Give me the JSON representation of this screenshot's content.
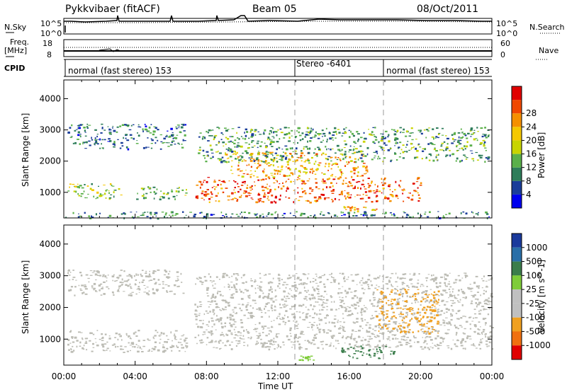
{
  "header": {
    "station": "Pykkvibaer (fitACF)",
    "beam": "Beam 05",
    "date": "08/Oct/2011"
  },
  "left_labels": {
    "nsky": "N.Sky",
    "freq_top": "Freq.",
    "freq_unit": "[MHz]",
    "cpid": "CPID"
  },
  "right_labels": {
    "nsearch": "N.Search",
    "nave": "Nave"
  },
  "noise_panel": {
    "left_top": "10^5",
    "left_bottom": "10^0",
    "right_top": "10^5",
    "right_bottom": "10^0"
  },
  "freq_panel": {
    "left_top": "18",
    "left_bottom": "8",
    "right_top": "60",
    "right_bottom": "0"
  },
  "cpid_segments": [
    {
      "label": "normal (fast stereo) 153",
      "start_hour": 0
    },
    {
      "label": "Stereo -6401",
      "start_hour": 13
    },
    {
      "label": "normal (fast stereo) 153",
      "start_hour": 18
    }
  ],
  "colors": {
    "power_scale": [
      "#0000ee",
      "#1a3d9a",
      "#2e7d5a",
      "#5ab04a",
      "#c8d400",
      "#f5c800",
      "#f59000",
      "#f04800",
      "#e00000"
    ],
    "velocity_scale": [
      "#1a3a9c",
      "#2a6fa8",
      "#3b7d4b",
      "#7fcc3a",
      "#c0c0c0",
      "#c0c0c0",
      "#f0a020",
      "#f07010",
      "#e00000"
    ],
    "ground_scatter": "#bcbcb4"
  },
  "chart_data": [
    {
      "type": "heatmap",
      "panel": "power",
      "title": "",
      "xlabel": "Time UT",
      "ylabel": "Slant Range [km]",
      "xlim_hours": [
        0,
        24
      ],
      "ylim_km": [
        180,
        4600
      ],
      "x_ticks": [
        "00:00",
        "04:00",
        "08:00",
        "12:00",
        "16:00",
        "20:00",
        "00:00"
      ],
      "y_ticks": [
        "1000",
        "2000",
        "3000",
        "4000"
      ],
      "colorbar": {
        "label": "Power [dB]",
        "ticks": [
          "4",
          "8",
          "12",
          "16",
          "20",
          "24",
          "28"
        ],
        "range": [
          0,
          30
        ]
      },
      "echo_regions": [
        {
          "hours": [
            0.2,
            6.8
          ],
          "range_km": [
            2400,
            3200
          ],
          "power_db": 8
        },
        {
          "hours": [
            0.2,
            3.2
          ],
          "range_km": [
            800,
            1300
          ],
          "power_db": 14
        },
        {
          "hours": [
            4.0,
            7.0
          ],
          "range_km": [
            800,
            1200
          ],
          "power_db": 12
        },
        {
          "hours": [
            7.3,
            20.0
          ],
          "range_km": [
            700,
            1500
          ],
          "power_db": 24
        },
        {
          "hours": [
            9.0,
            17.0
          ],
          "range_km": [
            1500,
            2300
          ],
          "power_db": 20
        },
        {
          "hours": [
            7.5,
            23.8
          ],
          "range_km": [
            2000,
            3100
          ],
          "power_db": 10
        },
        {
          "hours": [
            15.5,
            17.5
          ],
          "range_km": [
            420,
            600
          ],
          "power_db": 20
        },
        {
          "hours": [
            0.0,
            24.0
          ],
          "range_km": [
            190,
            400
          ],
          "power_db": 8
        }
      ]
    },
    {
      "type": "heatmap",
      "panel": "velocity",
      "title": "",
      "xlabel": "Time UT",
      "ylabel": "Slant Range [km]",
      "xlim_hours": [
        0,
        24
      ],
      "ylim_km": [
        180,
        4600
      ],
      "x_ticks": [
        "00:00",
        "04:00",
        "08:00",
        "12:00",
        "16:00",
        "20:00",
        "00:00"
      ],
      "y_ticks": [
        "1000",
        "2000",
        "3000",
        "4000"
      ],
      "colorbar": {
        "label": "Velocity [m s^-1]",
        "ticks": [
          "1000",
          "500",
          "100",
          "25",
          "-25",
          "-100",
          "-500",
          "-1000"
        ],
        "range": [
          -1000,
          1000
        ]
      },
      "echo_regions": [
        {
          "hours": [
            0.2,
            6.8
          ],
          "range_km": [
            2400,
            3200
          ],
          "velocity": 0,
          "ground_scatter": true
        },
        {
          "hours": [
            0.2,
            7.0
          ],
          "range_km": [
            600,
            1300
          ],
          "velocity": 0,
          "ground_scatter": true
        },
        {
          "hours": [
            7.3,
            24.0
          ],
          "range_km": [
            700,
            3100
          ],
          "velocity": 0,
          "ground_scatter": true
        },
        {
          "hours": [
            15.5,
            18.5
          ],
          "range_km": [
            400,
            800
          ],
          "velocity": 300
        },
        {
          "hours": [
            17.5,
            21.0
          ],
          "range_km": [
            1200,
            2600
          ],
          "velocity": -400
        },
        {
          "hours": [
            13.0,
            14.0
          ],
          "range_km": [
            350,
            480
          ],
          "velocity": 60
        }
      ]
    }
  ]
}
